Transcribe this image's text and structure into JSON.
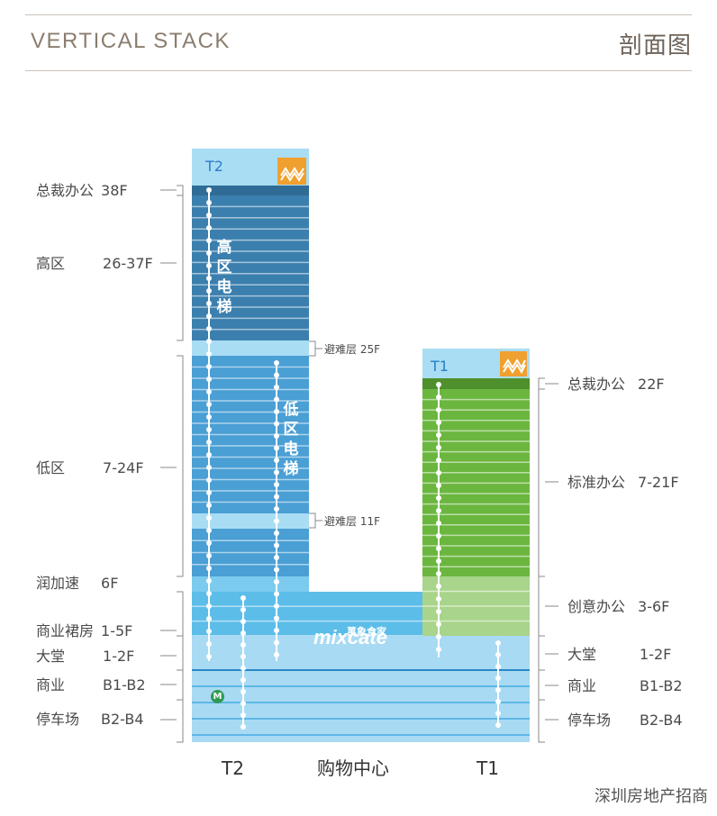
{
  "header": {
    "title": "VERTICAL STACK",
    "title_cn": "剖面图"
  },
  "left_labels": [
    {
      "name": "总裁办公",
      "floors": "38F"
    },
    {
      "name": "高区",
      "floors": "26-37F"
    },
    {
      "name": "低区",
      "floors": "7-24F"
    },
    {
      "name": "润加速",
      "floors": "6F"
    },
    {
      "name": "商业裙房",
      "floors": "1-5F"
    },
    {
      "name": "大堂",
      "floors": "1-2F"
    },
    {
      "name": "商业",
      "floors": "B1-B2"
    },
    {
      "name": "停车场",
      "floors": "B2-B4"
    }
  ],
  "right_labels": [
    {
      "name": "总裁办公",
      "floors": "22F"
    },
    {
      "name": "标准办公",
      "floors": "7-21F"
    },
    {
      "name": "创意办公",
      "floors": "3-6F"
    },
    {
      "name": "大堂",
      "floors": "1-2F"
    },
    {
      "name": "商业",
      "floors": "B1-B2"
    },
    {
      "name": "停车场",
      "floors": "B2-B4"
    }
  ],
  "refuge_floors": [
    {
      "label": "避难层 25F"
    },
    {
      "label": "避难层 11F"
    }
  ],
  "towers": {
    "t2": "T2",
    "t1": "T1"
  },
  "elevators": {
    "high": "高区电梯",
    "low": "低区电梯"
  },
  "mall_brand": {
    "logo": "mixcate",
    "cn": "萬象食家"
  },
  "bottom_labels": {
    "t2": "T2",
    "mall": "购物中心",
    "t1": "T1"
  },
  "watermark": "深圳房地产招商",
  "colors": {
    "t2_high": "#3b7fae",
    "t2_low": "#4a9fd4",
    "t1_office": "#6bb63f",
    "t1_creative": "#a9d48b",
    "podium": "#5cbde8",
    "basement": "#a8daf3",
    "roof": "#a9ddf4",
    "logo_orange": "#f0a02e"
  }
}
